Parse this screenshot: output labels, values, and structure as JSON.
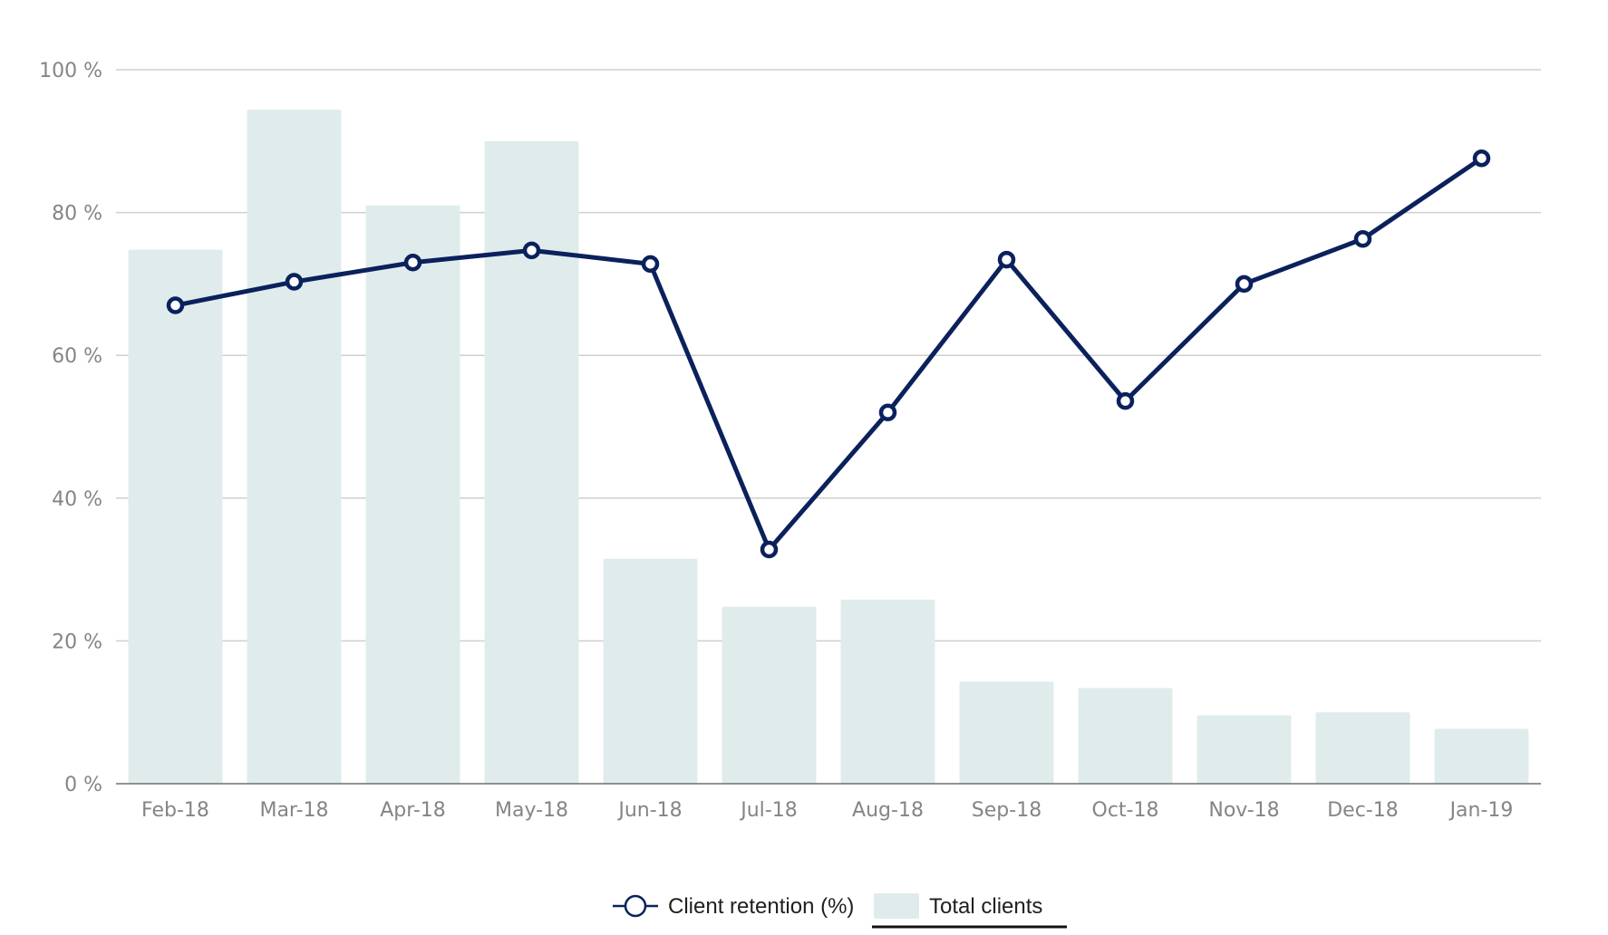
{
  "colors": {
    "background": "#ffffff",
    "bar": "#e0ecec",
    "line": "#0a215c",
    "grid": "#cfcfcf",
    "axis": "#6e6e6e",
    "tick_text": "#858585",
    "legend_text": "#1f1f1f"
  },
  "chart_data": {
    "type": "bar",
    "title": "",
    "xlabel": "",
    "ylabel": "",
    "categories": [
      "Feb-18",
      "Mar-18",
      "Apr-18",
      "May-18",
      "Jun-18",
      "Jul-18",
      "Aug-18",
      "Sep-18",
      "Oct-18",
      "Nov-18",
      "Dec-18",
      "Jan-19"
    ],
    "y_ticks": [
      "0 %",
      "20 %",
      "40 %",
      "60 %",
      "80 %",
      "100 %"
    ],
    "ylim": [
      0,
      100
    ],
    "grid": true,
    "legend_position": "bottom-center",
    "series": [
      {
        "name": "Total clients",
        "type": "bar",
        "values": [
          74.8,
          94.4,
          81.0,
          90.0,
          31.5,
          24.8,
          25.8,
          14.3,
          13.4,
          9.6,
          10.0,
          7.7
        ]
      },
      {
        "name": "Client retention (%)",
        "type": "line",
        "marker": "circle",
        "values": [
          67.0,
          70.3,
          73.0,
          74.7,
          72.8,
          32.8,
          52.0,
          73.4,
          53.6,
          70.0,
          76.3,
          87.6
        ]
      }
    ]
  }
}
